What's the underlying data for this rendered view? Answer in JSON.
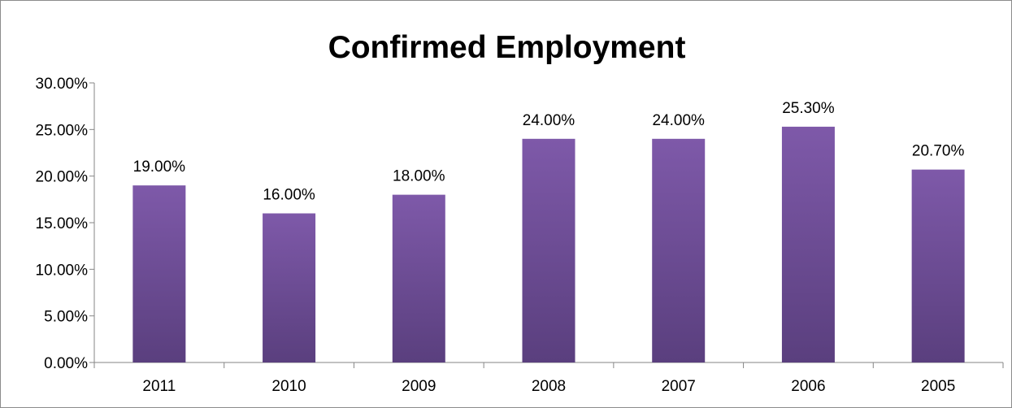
{
  "chart_data": {
    "type": "bar",
    "title": "Confirmed Employment",
    "categories": [
      "2011",
      "2010",
      "2009",
      "2008",
      "2007",
      "2006",
      "2005"
    ],
    "values": [
      19.0,
      16.0,
      18.0,
      24.0,
      24.0,
      25.3,
      20.7
    ],
    "data_labels": [
      "19.00%",
      "16.00%",
      "18.00%",
      "24.00%",
      "24.00%",
      "25.30%",
      "20.70%"
    ],
    "y_ticks": [
      0,
      5,
      10,
      15,
      20,
      25,
      30
    ],
    "y_tick_labels": [
      "0.00%",
      "5.00%",
      "10.00%",
      "15.00%",
      "20.00%",
      "25.00%",
      "30.00%"
    ],
    "ylim": [
      0,
      30
    ],
    "xlabel": "",
    "ylabel": "",
    "grid": false,
    "legend": "none",
    "colors": {
      "bar_top": "#7e59a9",
      "bar_bottom": "#5a3f7e",
      "axis": "#868686",
      "border": "#8c8c8c"
    }
  }
}
